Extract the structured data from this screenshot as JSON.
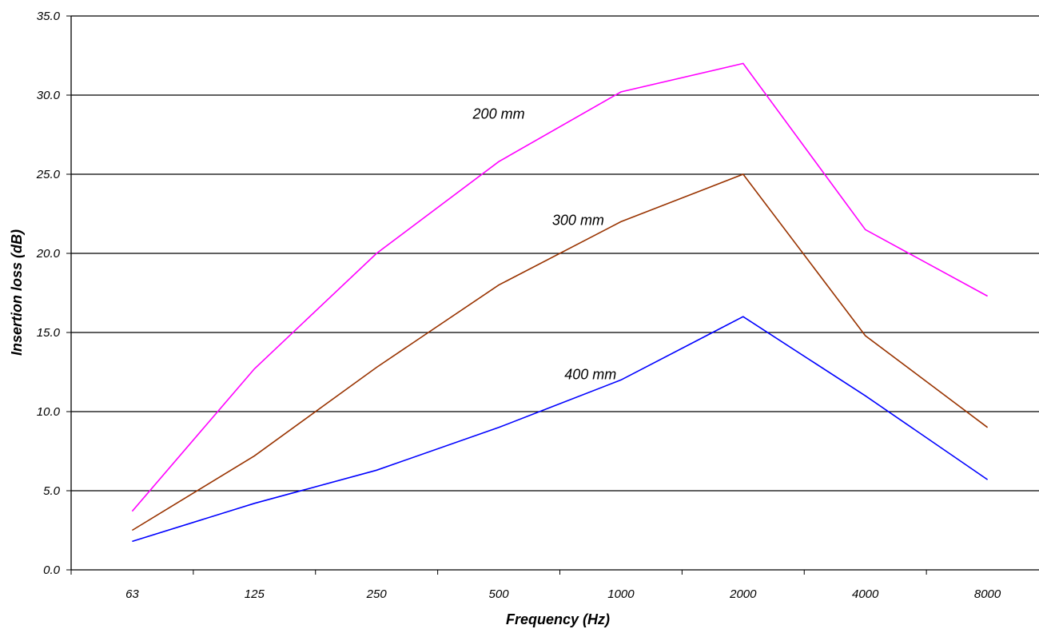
{
  "chart_data": {
    "type": "line",
    "title": "",
    "xlabel": "Frequency (Hz)",
    "ylabel": "Insertion loss (dB)",
    "categories": [
      "63",
      "125",
      "250",
      "500",
      "1000",
      "2000",
      "4000",
      "8000"
    ],
    "ylim": [
      0,
      35
    ],
    "yticks": [
      "0.0",
      "5.0",
      "10.0",
      "15.0",
      "20.0",
      "25.0",
      "30.0",
      "35.0"
    ],
    "grid": "horizontal",
    "legend": "none",
    "series": [
      {
        "name": "200 mm",
        "color": "#ff00ff",
        "values": [
          3.7,
          12.7,
          20.0,
          25.8,
          30.2,
          32.0,
          21.5,
          17.3
        ]
      },
      {
        "name": "300 mm",
        "color": "#993300",
        "values": [
          2.5,
          7.2,
          12.8,
          18.0,
          22.0,
          25.0,
          14.8,
          9.0
        ]
      },
      {
        "name": "400 mm",
        "color": "#0000ff",
        "values": [
          1.8,
          4.2,
          6.3,
          9.0,
          12.0,
          16.0,
          11.0,
          5.7
        ]
      }
    ]
  }
}
